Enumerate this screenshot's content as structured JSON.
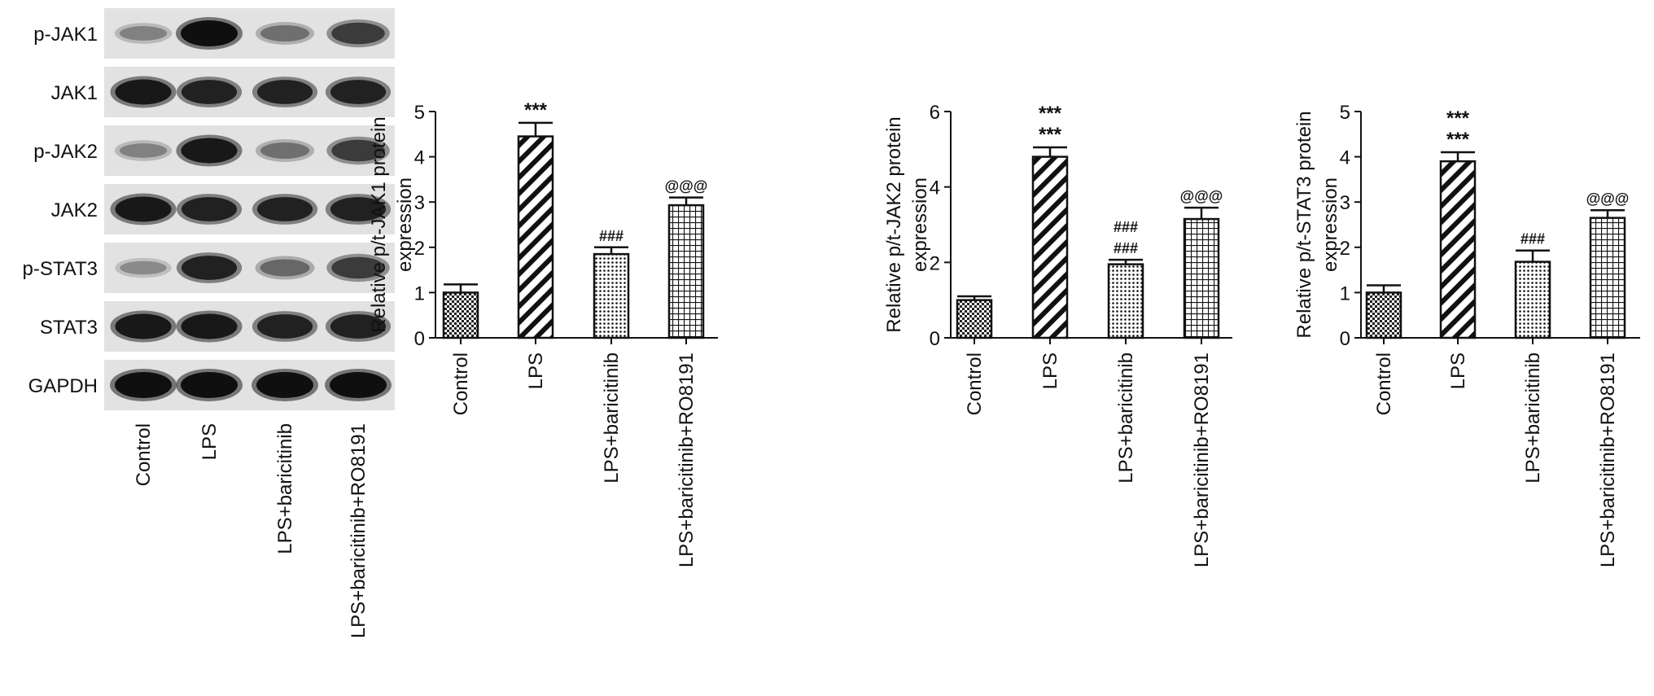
{
  "blot": {
    "rows": [
      "p-JAK1",
      "JAK1",
      "p-JAK2",
      "JAK2",
      "p-STAT3",
      "STAT3",
      "GAPDH"
    ],
    "lanes": [
      "Control",
      "LPS",
      "LPS+baricitinib",
      "LPS+baricitinib+RO8191"
    ],
    "band_intensity": [
      [
        0.35,
        1.0,
        0.45,
        0.75
      ],
      [
        0.95,
        0.9,
        0.9,
        0.9
      ],
      [
        0.35,
        0.95,
        0.45,
        0.75
      ],
      [
        0.95,
        0.9,
        0.9,
        0.9
      ],
      [
        0.3,
        0.9,
        0.5,
        0.75
      ],
      [
        0.95,
        0.95,
        0.9,
        0.9
      ],
      [
        1.0,
        1.0,
        1.0,
        1.0
      ]
    ]
  },
  "chart_data": [
    {
      "type": "bar",
      "categories": [
        "Control",
        "LPS",
        "LPS+baricitinib",
        "LPS+baricitinib+RO8191"
      ],
      "values": [
        1.0,
        4.45,
        1.85,
        2.93
      ],
      "errors": [
        0.18,
        0.3,
        0.15,
        0.17
      ],
      "ylabel_lines": [
        "Relative p/t-JAK1 protein",
        "expression"
      ],
      "ylim": [
        0,
        5
      ],
      "yticks": [
        0,
        1,
        2,
        3,
        4,
        5
      ],
      "annotations": [
        [],
        [
          "***"
        ],
        [
          "###"
        ],
        [
          "@@@"
        ]
      ]
    },
    {
      "type": "bar",
      "categories": [
        "Control",
        "LPS",
        "LPS+baricitinib",
        "LPS+baricitinib+RO8191"
      ],
      "values": [
        1.0,
        4.8,
        1.95,
        3.15
      ],
      "errors": [
        0.1,
        0.25,
        0.12,
        0.3
      ],
      "ylabel_lines": [
        "Relative p/t-JAK2 protein",
        "expression"
      ],
      "ylim": [
        0,
        6
      ],
      "yticks": [
        0,
        2,
        4,
        6
      ],
      "annotations": [
        [],
        [
          "***",
          "***"
        ],
        [
          "###",
          "###"
        ],
        [
          "@@@"
        ]
      ]
    },
    {
      "type": "bar",
      "categories": [
        "Control",
        "LPS",
        "LPS+baricitinib",
        "LPS+baricitinib+RO8191"
      ],
      "values": [
        1.0,
        3.9,
        1.68,
        2.65
      ],
      "errors": [
        0.16,
        0.2,
        0.25,
        0.17
      ],
      "ylabel_lines": [
        "Relative p/t-STAT3 protein",
        "expression"
      ],
      "ylim": [
        0,
        5
      ],
      "yticks": [
        0,
        1,
        2,
        3,
        4,
        5
      ],
      "annotations": [
        [],
        [
          "***",
          "***"
        ],
        [
          "###"
        ],
        [
          "@@@"
        ]
      ]
    }
  ]
}
